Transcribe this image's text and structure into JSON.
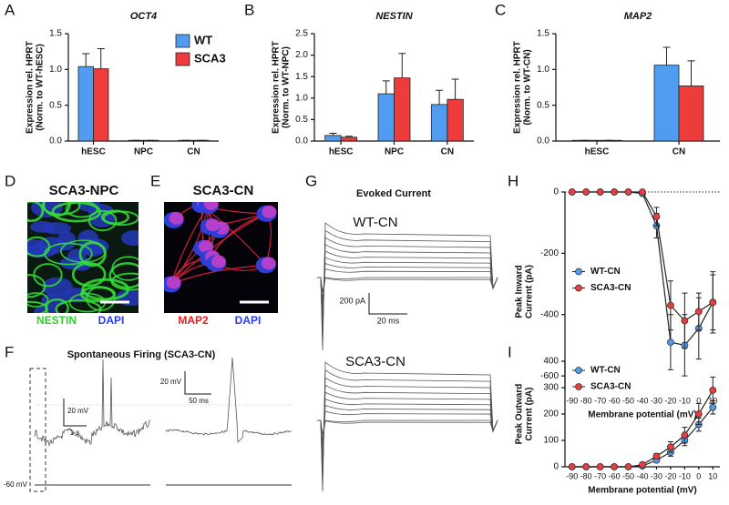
{
  "chart_data": [
    {
      "type": "bar",
      "label": "A",
      "title": "OCT4",
      "ylabel": [
        "Expression rel. HPRT",
        "(Norm. to WT-hESC)"
      ],
      "categories": [
        "hESC",
        "NPC",
        "CN"
      ],
      "series": [
        {
          "name": "WT",
          "color": "#4f9cf0",
          "values": [
            1.04,
            0.01,
            0.01
          ],
          "errors": [
            0.18,
            0,
            0
          ]
        },
        {
          "name": "SCA3",
          "color": "#ee3b3b",
          "values": [
            1.01,
            0.01,
            0.01
          ],
          "errors": [
            0.28,
            0,
            0
          ]
        }
      ],
      "ylim": [
        0,
        1.5
      ],
      "yticks": [
        {
          "value": 0,
          "label": "0.0"
        },
        0.5,
        {
          "value": 1,
          "label": "1.0"
        },
        1.5
      ],
      "legend": "top-right"
    },
    {
      "type": "bar",
      "label": "B",
      "title": "NESTIN",
      "ylabel": [
        "Expression rel. HPRT",
        "(Norm. to WT-NPC)"
      ],
      "categories": [
        "hESC",
        "NPC",
        "CN"
      ],
      "series": [
        {
          "name": "WT",
          "color": "#4f9cf0",
          "values": [
            0.13,
            1.1,
            0.85
          ],
          "errors": [
            0.05,
            0.3,
            0.33
          ]
        },
        {
          "name": "SCA3",
          "color": "#ee3b3b",
          "values": [
            0.09,
            1.47,
            0.97
          ],
          "errors": [
            0.02,
            0.57,
            0.47
          ]
        }
      ],
      "ylim": [
        0,
        2.5
      ],
      "yticks": [
        {
          "value": 0,
          "label": "0.0"
        },
        0.5,
        {
          "value": 1,
          "label": "1.0"
        },
        1.5,
        {
          "value": 2,
          "label": "2.0"
        },
        2.5
      ]
    },
    {
      "type": "bar",
      "label": "C",
      "title": "MAP2",
      "ylabel": [
        "Expression rel. HPRT",
        "(Norm. to WT-CN)"
      ],
      "categories": [
        "hESC",
        "CN"
      ],
      "series": [
        {
          "name": "WT",
          "color": "#4f9cf0",
          "values": [
            0.01,
            1.06
          ],
          "errors": [
            0,
            0.25
          ]
        },
        {
          "name": "SCA3",
          "color": "#ee3b3b",
          "values": [
            0.01,
            0.77
          ],
          "errors": [
            0,
            0.35
          ]
        }
      ],
      "ylim": [
        0,
        1.5
      ],
      "yticks": [
        {
          "value": 0,
          "label": "0.0"
        },
        0.5,
        {
          "value": 1,
          "label": "1.0"
        },
        1.5
      ]
    },
    {
      "type": "line",
      "label": "H",
      "ylabel": [
        "Peak Inward",
        "Current (pA)"
      ],
      "xlabel": "Membrane potential (mV)",
      "x": [
        -90,
        -80,
        -70,
        -60,
        -50,
        -40,
        -30,
        -20,
        -10,
        0,
        10
      ],
      "series": [
        {
          "name": "WT-CN",
          "color": "#4f9cf0",
          "values": [
            0,
            0,
            0,
            0,
            0,
            -5,
            -110,
            -490,
            -500,
            -445,
            -360
          ],
          "errors": [
            0,
            0,
            0,
            0,
            0,
            5,
            40,
            90,
            100,
            100,
            90
          ]
        },
        {
          "name": "SCA3-CN",
          "color": "#ee3b3b",
          "values": [
            0,
            0,
            0,
            0,
            0,
            0,
            -80,
            -370,
            -420,
            -390,
            -360
          ],
          "errors": [
            0,
            0,
            0,
            0,
            0,
            0,
            30,
            80,
            90,
            60,
            100
          ]
        }
      ],
      "xlim": [
        -95,
        15
      ],
      "xticks": [
        -90,
        -80,
        -70,
        -60,
        -50,
        -40,
        -30,
        -20,
        -10,
        0,
        10
      ],
      "ylim": [
        -650,
        0
      ],
      "yticks": [
        0,
        -200,
        -400,
        -600
      ],
      "zero_line": true,
      "legend": "center-left"
    },
    {
      "type": "line",
      "label": "I",
      "ylabel": [
        "Peak Outward",
        "Current (pA)"
      ],
      "xlabel": "Membrane potential (mV)",
      "x": [
        -90,
        -80,
        -70,
        -60,
        -50,
        -40,
        -30,
        -20,
        -10,
        0,
        10
      ],
      "series": [
        {
          "name": "WT-CN",
          "color": "#4f9cf0",
          "values": [
            0,
            0,
            0,
            0,
            0,
            3,
            25,
            55,
            100,
            160,
            225
          ],
          "errors": [
            0,
            0,
            0,
            0,
            0,
            3,
            8,
            15,
            20,
            25,
            25
          ]
        },
        {
          "name": "SCA3-CN",
          "color": "#ee3b3b",
          "values": [
            0,
            0,
            0,
            0,
            0,
            8,
            40,
            75,
            120,
            200,
            290
          ],
          "errors": [
            0,
            0,
            0,
            0,
            0,
            5,
            10,
            20,
            30,
            40,
            50
          ]
        }
      ],
      "xlim": [
        -95,
        15
      ],
      "xticks": [
        -90,
        -80,
        -70,
        -60,
        -50,
        -40,
        -30,
        -20,
        -10,
        0,
        10
      ],
      "ylim": [
        0,
        400
      ],
      "yticks": [
        0,
        100,
        200,
        300,
        400
      ],
      "legend": "top-left"
    }
  ],
  "figure": {
    "D": {
      "label": "D",
      "title": "SCA3-NPC",
      "stains": [
        "NESTIN",
        "DAPI"
      ]
    },
    "E": {
      "label": "E",
      "title": "SCA3-CN",
      "stains": [
        "MAP2",
        "DAPI"
      ]
    },
    "F": {
      "label": "F",
      "title": "Spontaneous Firing (SCA3-CN)",
      "scale_left": [
        "20 mV",
        "1 s"
      ],
      "scale_right": [
        "20 mV",
        "50 ms"
      ],
      "baseline": "-60 mV"
    },
    "G": {
      "label": "G",
      "title": "Evoked Current",
      "traces": [
        "WT-CN",
        "SCA3-CN"
      ],
      "scale": [
        "200 pA",
        "20 ms"
      ]
    }
  }
}
